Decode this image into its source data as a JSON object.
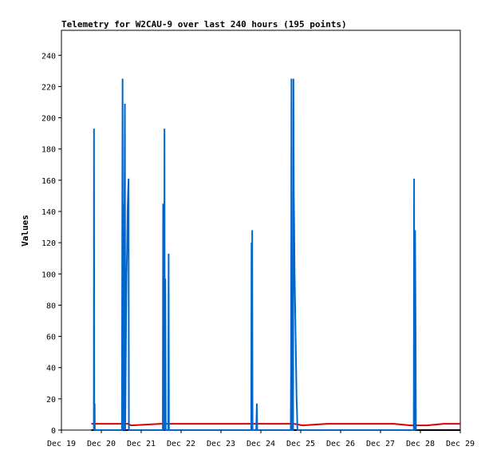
{
  "chart_data": {
    "type": "line",
    "title": "Telemetry for W2CAU-9 over last 240 hours (195 points)",
    "xlabel": "",
    "ylabel": "Values",
    "x_ticks": [
      "Dec 19",
      "Dec 20",
      "Dec 21",
      "Dec 22",
      "Dec 23",
      "Dec 24",
      "Dec 25",
      "Dec 26",
      "Dec 27",
      "Dec 28",
      "Dec 29"
    ],
    "y_ticks": [
      0,
      20,
      40,
      60,
      80,
      100,
      120,
      140,
      160,
      180,
      200,
      220,
      240
    ],
    "xlim": [
      0,
      240
    ],
    "ylim": [
      0,
      256
    ],
    "grid": false,
    "colors": {
      "blue": "#0066cc",
      "red": "#dd0000",
      "black": "#000000"
    },
    "series": [
      {
        "color": "#0066cc",
        "points": [
          [
            19.5,
            0
          ],
          [
            19.6,
            193
          ],
          [
            19.7,
            80
          ],
          [
            19.8,
            0
          ],
          [
            20.0,
            17
          ],
          [
            20.1,
            0
          ],
          [
            36.4,
            0
          ],
          [
            36.6,
            128
          ],
          [
            36.8,
            225
          ],
          [
            37.0,
            0
          ],
          [
            37.2,
            145
          ],
          [
            37.4,
            0
          ],
          [
            38.2,
            209
          ],
          [
            38.4,
            0
          ],
          [
            38.6,
            30
          ],
          [
            38.9,
            70
          ],
          [
            39.2,
            100
          ],
          [
            39.5,
            115
          ],
          [
            39.8,
            140
          ],
          [
            40.1,
            152
          ],
          [
            40.4,
            161
          ],
          [
            40.6,
            0
          ],
          [
            61.0,
            0
          ],
          [
            61.2,
            145
          ],
          [
            61.4,
            25
          ],
          [
            61.6,
            56
          ],
          [
            61.8,
            0
          ],
          [
            62.0,
            193
          ],
          [
            62.2,
            0
          ],
          [
            62.5,
            97
          ],
          [
            62.8,
            0
          ],
          [
            64.3,
            0
          ],
          [
            64.5,
            113
          ],
          [
            64.7,
            0
          ],
          [
            114.2,
            0
          ],
          [
            114.4,
            120
          ],
          [
            114.6,
            0
          ],
          [
            114.8,
            128
          ],
          [
            115.0,
            0
          ],
          [
            117.2,
            0
          ],
          [
            117.4,
            8
          ],
          [
            117.6,
            17
          ],
          [
            117.8,
            0
          ],
          [
            138.0,
            0
          ],
          [
            138.2,
            49
          ],
          [
            138.4,
            225
          ],
          [
            138.6,
            0
          ],
          [
            139.4,
            0
          ],
          [
            139.6,
            225
          ],
          [
            139.8,
            152
          ],
          [
            140.0,
            135
          ],
          [
            140.3,
            100
          ],
          [
            140.6,
            80
          ],
          [
            140.9,
            60
          ],
          [
            141.2,
            40
          ],
          [
            141.5,
            20
          ],
          [
            141.8,
            10
          ],
          [
            142.0,
            0
          ],
          [
            212.0,
            0
          ],
          [
            212.2,
            161
          ],
          [
            212.4,
            0
          ],
          [
            212.8,
            128
          ],
          [
            213.1,
            65
          ],
          [
            213.3,
            0
          ]
        ]
      },
      {
        "color": "#dd0000",
        "points": [
          [
            18,
            4
          ],
          [
            40,
            4
          ],
          [
            42,
            3
          ],
          [
            60,
            4
          ],
          [
            70,
            4
          ],
          [
            115,
            4
          ],
          [
            140,
            4
          ],
          [
            145,
            3
          ],
          [
            160,
            4
          ],
          [
            175,
            4
          ],
          [
            185,
            4
          ],
          [
            200,
            4
          ],
          [
            210,
            3
          ],
          [
            220,
            3
          ],
          [
            230,
            4
          ],
          [
            240,
            4
          ]
        ]
      },
      {
        "color": "#000000",
        "points": [
          [
            18,
            0
          ],
          [
            240,
            0
          ]
        ]
      }
    ]
  }
}
